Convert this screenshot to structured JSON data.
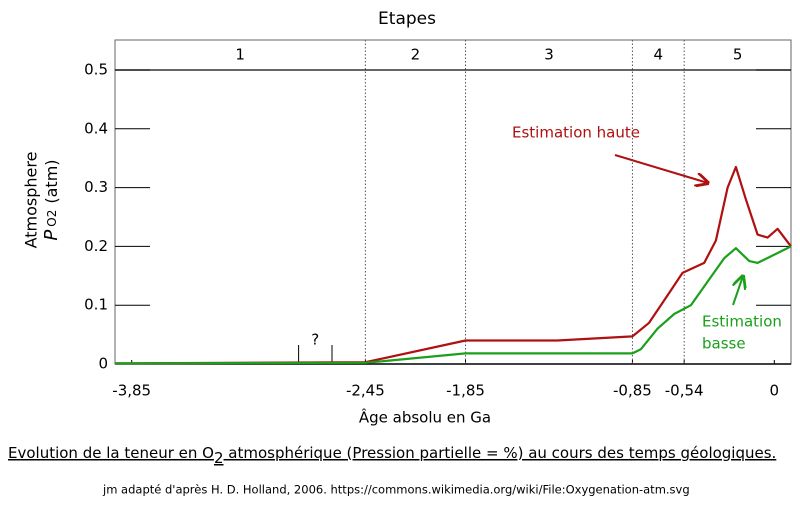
{
  "chart_data": {
    "type": "line",
    "title": "Etapes",
    "stages": [
      "1",
      "2",
      "3",
      "4",
      "5"
    ],
    "stage_boundaries": [
      -2.45,
      -1.85,
      -0.85,
      -0.54
    ],
    "y_label": "Atmosphere",
    "y_label_symbol": "P",
    "y_label_subscript": "O2",
    "y_label_unit": "(atm)",
    "x_label": "Âge absolu en Ga",
    "xlim": [
      -3.95,
      0.1
    ],
    "xticks": [
      {
        "value": -3.85,
        "label": "-3,85"
      },
      {
        "value": -2.45,
        "label": "-2,45"
      },
      {
        "value": -1.85,
        "label": "-1,85"
      },
      {
        "value": -0.85,
        "label": "-0,85"
      },
      {
        "value": -0.54,
        "label": "-0,54"
      },
      0
    ],
    "ylim": [
      0,
      0.5
    ],
    "yticks": [
      0,
      0.1,
      0.2,
      0.3,
      0.4,
      0.5
    ],
    "series": [
      {
        "name": "Estimation haute",
        "color": "#b01010",
        "x": [
          -3.95,
          -2.45,
          -1.85,
          -1.3,
          -0.85,
          -0.75,
          -0.62,
          -0.55,
          -0.42,
          -0.35,
          -0.28,
          -0.23,
          -0.17,
          -0.1,
          -0.04,
          0.02,
          0.1
        ],
        "values": [
          0.001,
          0.003,
          0.04,
          0.04,
          0.047,
          0.07,
          0.125,
          0.155,
          0.172,
          0.21,
          0.3,
          0.335,
          0.28,
          0.22,
          0.215,
          0.23,
          0.2
        ]
      },
      {
        "name": "Estimation basse",
        "color": "#1aa01a",
        "x": [
          -3.95,
          -2.45,
          -1.85,
          -0.85,
          -0.8,
          -0.7,
          -0.6,
          -0.5,
          -0.4,
          -0.3,
          -0.23,
          -0.15,
          -0.1,
          0.1
        ],
        "values": [
          0.001,
          0.002,
          0.018,
          0.018,
          0.025,
          0.06,
          0.085,
          0.1,
          0.14,
          0.18,
          0.197,
          0.175,
          0.172,
          0.2
        ]
      }
    ],
    "annotations": {
      "high": "Estimation haute",
      "low_line1": "Estimation",
      "low_line2": "basse",
      "question": "?",
      "question_marks_x": [
        -2.85,
        -2.65
      ]
    },
    "caption_start": "Evolution de la teneur en O",
    "caption_subscript": "2",
    "caption_end": " atmosphérique (Pression partielle = %) au cours des temps géologiques.",
    "credit": "jm adapté d'après H. D. Holland, 2006. https://commons.wikimedia.org/wiki/File:Oxygenation-atm.svg"
  }
}
